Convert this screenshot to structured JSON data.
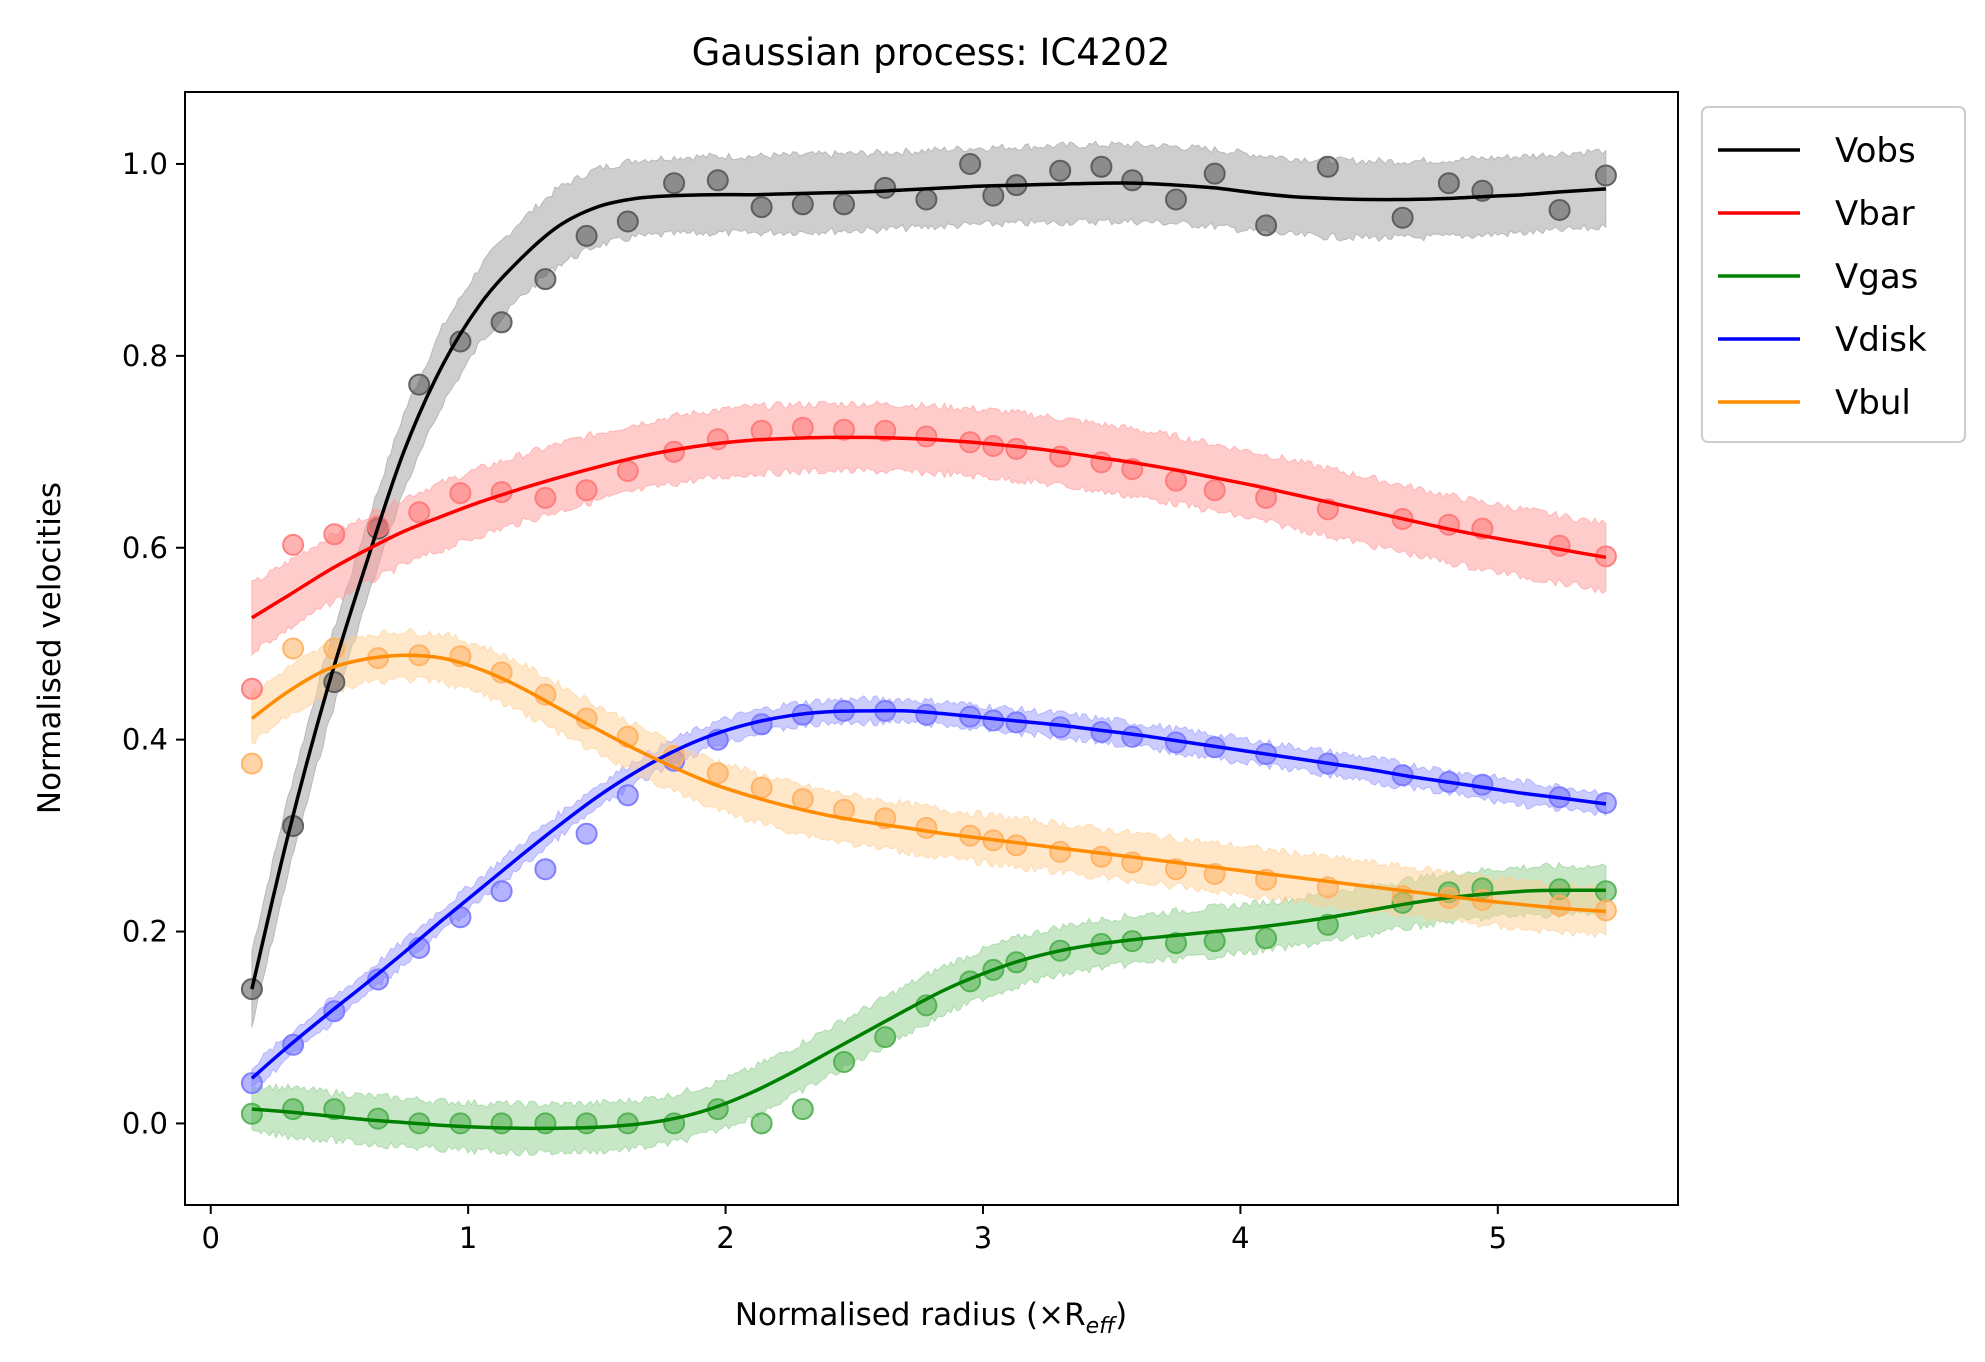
{
  "chart_data": {
    "type": "line",
    "title": "Gaussian process: IC4202",
    "xlabel": "Normalised radius (×R",
    "xlabel_sub": "eff",
    "xlabel_close": ")",
    "ylabel": "Normalised velocities",
    "xlim": [
      -0.1,
      5.7
    ],
    "ylim": [
      -0.085,
      1.075
    ],
    "xticks": [
      0,
      1,
      2,
      3,
      4,
      5
    ],
    "xtick_labels": [
      "0",
      "1",
      "2",
      "3",
      "4",
      "5"
    ],
    "yticks": [
      0.0,
      0.2,
      0.4,
      0.6,
      0.8,
      1.0
    ],
    "ytick_labels": [
      "0.0",
      "0.2",
      "0.4",
      "0.6",
      "0.8",
      "1.0"
    ],
    "legend_position": "outside-upper-right",
    "x_points": [
      0.16,
      0.32,
      0.48,
      0.65,
      0.81,
      0.97,
      1.13,
      1.3,
      1.46,
      1.62,
      1.8,
      1.97,
      2.14,
      2.3,
      2.46,
      2.62,
      2.78,
      2.95,
      3.04,
      3.13,
      3.3,
      3.46,
      3.58,
      3.75,
      3.9,
      4.1,
      4.34,
      4.63,
      4.81,
      4.94,
      5.24,
      5.42
    ],
    "x_curve": [
      0.16,
      0.3,
      0.45,
      0.6,
      0.75,
      0.9,
      1.05,
      1.2,
      1.35,
      1.5,
      1.65,
      1.8,
      1.95,
      2.1,
      2.25,
      2.4,
      2.55,
      2.7,
      2.85,
      3.0,
      3.15,
      3.3,
      3.45,
      3.6,
      3.75,
      3.9,
      4.05,
      4.2,
      4.35,
      4.5,
      4.65,
      4.8,
      4.95,
      5.1,
      5.25,
      5.42
    ],
    "series": [
      {
        "name": "Vobs",
        "color": "#000000",
        "point_color": "#555555",
        "band_color": "#9e9e9e",
        "band_halfwidth": 0.04,
        "points": [
          0.14,
          0.31,
          0.46,
          0.62,
          0.77,
          0.815,
          0.835,
          0.88,
          0.925,
          0.94,
          0.98,
          0.983,
          0.955,
          0.958,
          0.958,
          0.975,
          0.963,
          1.0,
          0.967,
          0.978,
          0.993,
          0.997,
          0.983,
          0.963,
          0.99,
          0.936,
          0.997,
          0.944,
          0.98,
          0.972,
          0.952,
          0.988
        ],
        "curve": [
          0.14,
          0.3,
          0.45,
          0.58,
          0.7,
          0.79,
          0.855,
          0.9,
          0.935,
          0.955,
          0.964,
          0.967,
          0.968,
          0.968,
          0.969,
          0.97,
          0.971,
          0.973,
          0.975,
          0.977,
          0.978,
          0.979,
          0.98,
          0.98,
          0.978,
          0.975,
          0.97,
          0.966,
          0.964,
          0.963,
          0.963,
          0.964,
          0.966,
          0.968,
          0.971,
          0.974
        ]
      },
      {
        "name": "Vbar",
        "color": "#ff0000",
        "point_color": "#ff7777",
        "band_color": "#ff9a9a",
        "band_halfwidth": 0.035,
        "points": [
          0.453,
          0.603,
          0.614,
          0.622,
          0.637,
          0.657,
          0.658,
          0.652,
          0.66,
          0.68,
          0.7,
          0.713,
          0.722,
          0.725,
          0.723,
          0.722,
          0.716,
          0.71,
          0.706,
          0.703,
          0.695,
          0.689,
          0.682,
          0.67,
          0.66,
          0.652,
          0.64,
          0.63,
          0.624,
          0.62,
          0.602,
          0.591
        ],
        "curve": [
          0.527,
          0.55,
          0.575,
          0.597,
          0.617,
          0.633,
          0.648,
          0.661,
          0.673,
          0.684,
          0.694,
          0.702,
          0.708,
          0.712,
          0.714,
          0.715,
          0.715,
          0.714,
          0.712,
          0.709,
          0.705,
          0.7,
          0.694,
          0.688,
          0.681,
          0.673,
          0.665,
          0.656,
          0.647,
          0.638,
          0.629,
          0.62,
          0.612,
          0.605,
          0.598,
          0.59
        ]
      },
      {
        "name": "Vgas",
        "color": "#008000",
        "point_color": "#4caf4c",
        "band_color": "#8fcf8f",
        "band_halfwidth": 0.025,
        "points": [
          0.01,
          0.015,
          0.015,
          0.005,
          0.0,
          0.0,
          0.0,
          0.0,
          0.0,
          0.0,
          0.0,
          0.015,
          0.0,
          0.015,
          0.064,
          0.09,
          0.123,
          0.148,
          0.16,
          0.168,
          0.18,
          0.187,
          0.19,
          0.188,
          0.19,
          0.193,
          0.207,
          0.23,
          0.241,
          0.245,
          0.244,
          0.242
        ],
        "curve": [
          0.015,
          0.012,
          0.008,
          0.004,
          0.001,
          -0.002,
          -0.004,
          -0.005,
          -0.005,
          -0.004,
          -0.001,
          0.005,
          0.016,
          0.032,
          0.052,
          0.074,
          0.096,
          0.118,
          0.139,
          0.156,
          0.17,
          0.18,
          0.187,
          0.192,
          0.196,
          0.2,
          0.204,
          0.209,
          0.215,
          0.222,
          0.229,
          0.235,
          0.239,
          0.242,
          0.243,
          0.243
        ]
      },
      {
        "name": "Vdisk",
        "color": "#0000ff",
        "point_color": "#7777ff",
        "band_color": "#9a9aff",
        "band_halfwidth": 0.012,
        "points": [
          0.042,
          0.082,
          0.117,
          0.15,
          0.183,
          0.215,
          0.242,
          0.265,
          0.302,
          0.342,
          0.378,
          0.4,
          0.416,
          0.426,
          0.43,
          0.43,
          0.426,
          0.424,
          0.42,
          0.418,
          0.413,
          0.408,
          0.403,
          0.397,
          0.392,
          0.385,
          0.375,
          0.363,
          0.356,
          0.353,
          0.34,
          0.334
        ],
        "curve": [
          0.047,
          0.08,
          0.113,
          0.145,
          0.178,
          0.212,
          0.245,
          0.278,
          0.31,
          0.34,
          0.366,
          0.388,
          0.405,
          0.417,
          0.425,
          0.429,
          0.43,
          0.43,
          0.427,
          0.423,
          0.419,
          0.415,
          0.41,
          0.405,
          0.399,
          0.393,
          0.387,
          0.381,
          0.375,
          0.369,
          0.362,
          0.356,
          0.35,
          0.344,
          0.339,
          0.333
        ]
      },
      {
        "name": "Vbul",
        "color": "#ff8c00",
        "point_color": "#ffb060",
        "band_color": "#ffcf94",
        "band_halfwidth": 0.025,
        "points": [
          0.375,
          0.495,
          0.495,
          0.485,
          0.488,
          0.487,
          0.47,
          0.447,
          0.422,
          0.403,
          0.383,
          0.365,
          0.35,
          0.338,
          0.327,
          0.318,
          0.308,
          0.3,
          0.295,
          0.29,
          0.283,
          0.278,
          0.272,
          0.265,
          0.26,
          0.254,
          0.246,
          0.237,
          0.235,
          0.233,
          0.227,
          0.222
        ],
        "curve": [
          0.422,
          0.45,
          0.473,
          0.484,
          0.488,
          0.485,
          0.473,
          0.455,
          0.433,
          0.411,
          0.39,
          0.371,
          0.354,
          0.341,
          0.33,
          0.321,
          0.314,
          0.308,
          0.302,
          0.297,
          0.292,
          0.287,
          0.282,
          0.277,
          0.272,
          0.267,
          0.262,
          0.257,
          0.252,
          0.247,
          0.242,
          0.237,
          0.232,
          0.228,
          0.224,
          0.221
        ]
      }
    ]
  }
}
